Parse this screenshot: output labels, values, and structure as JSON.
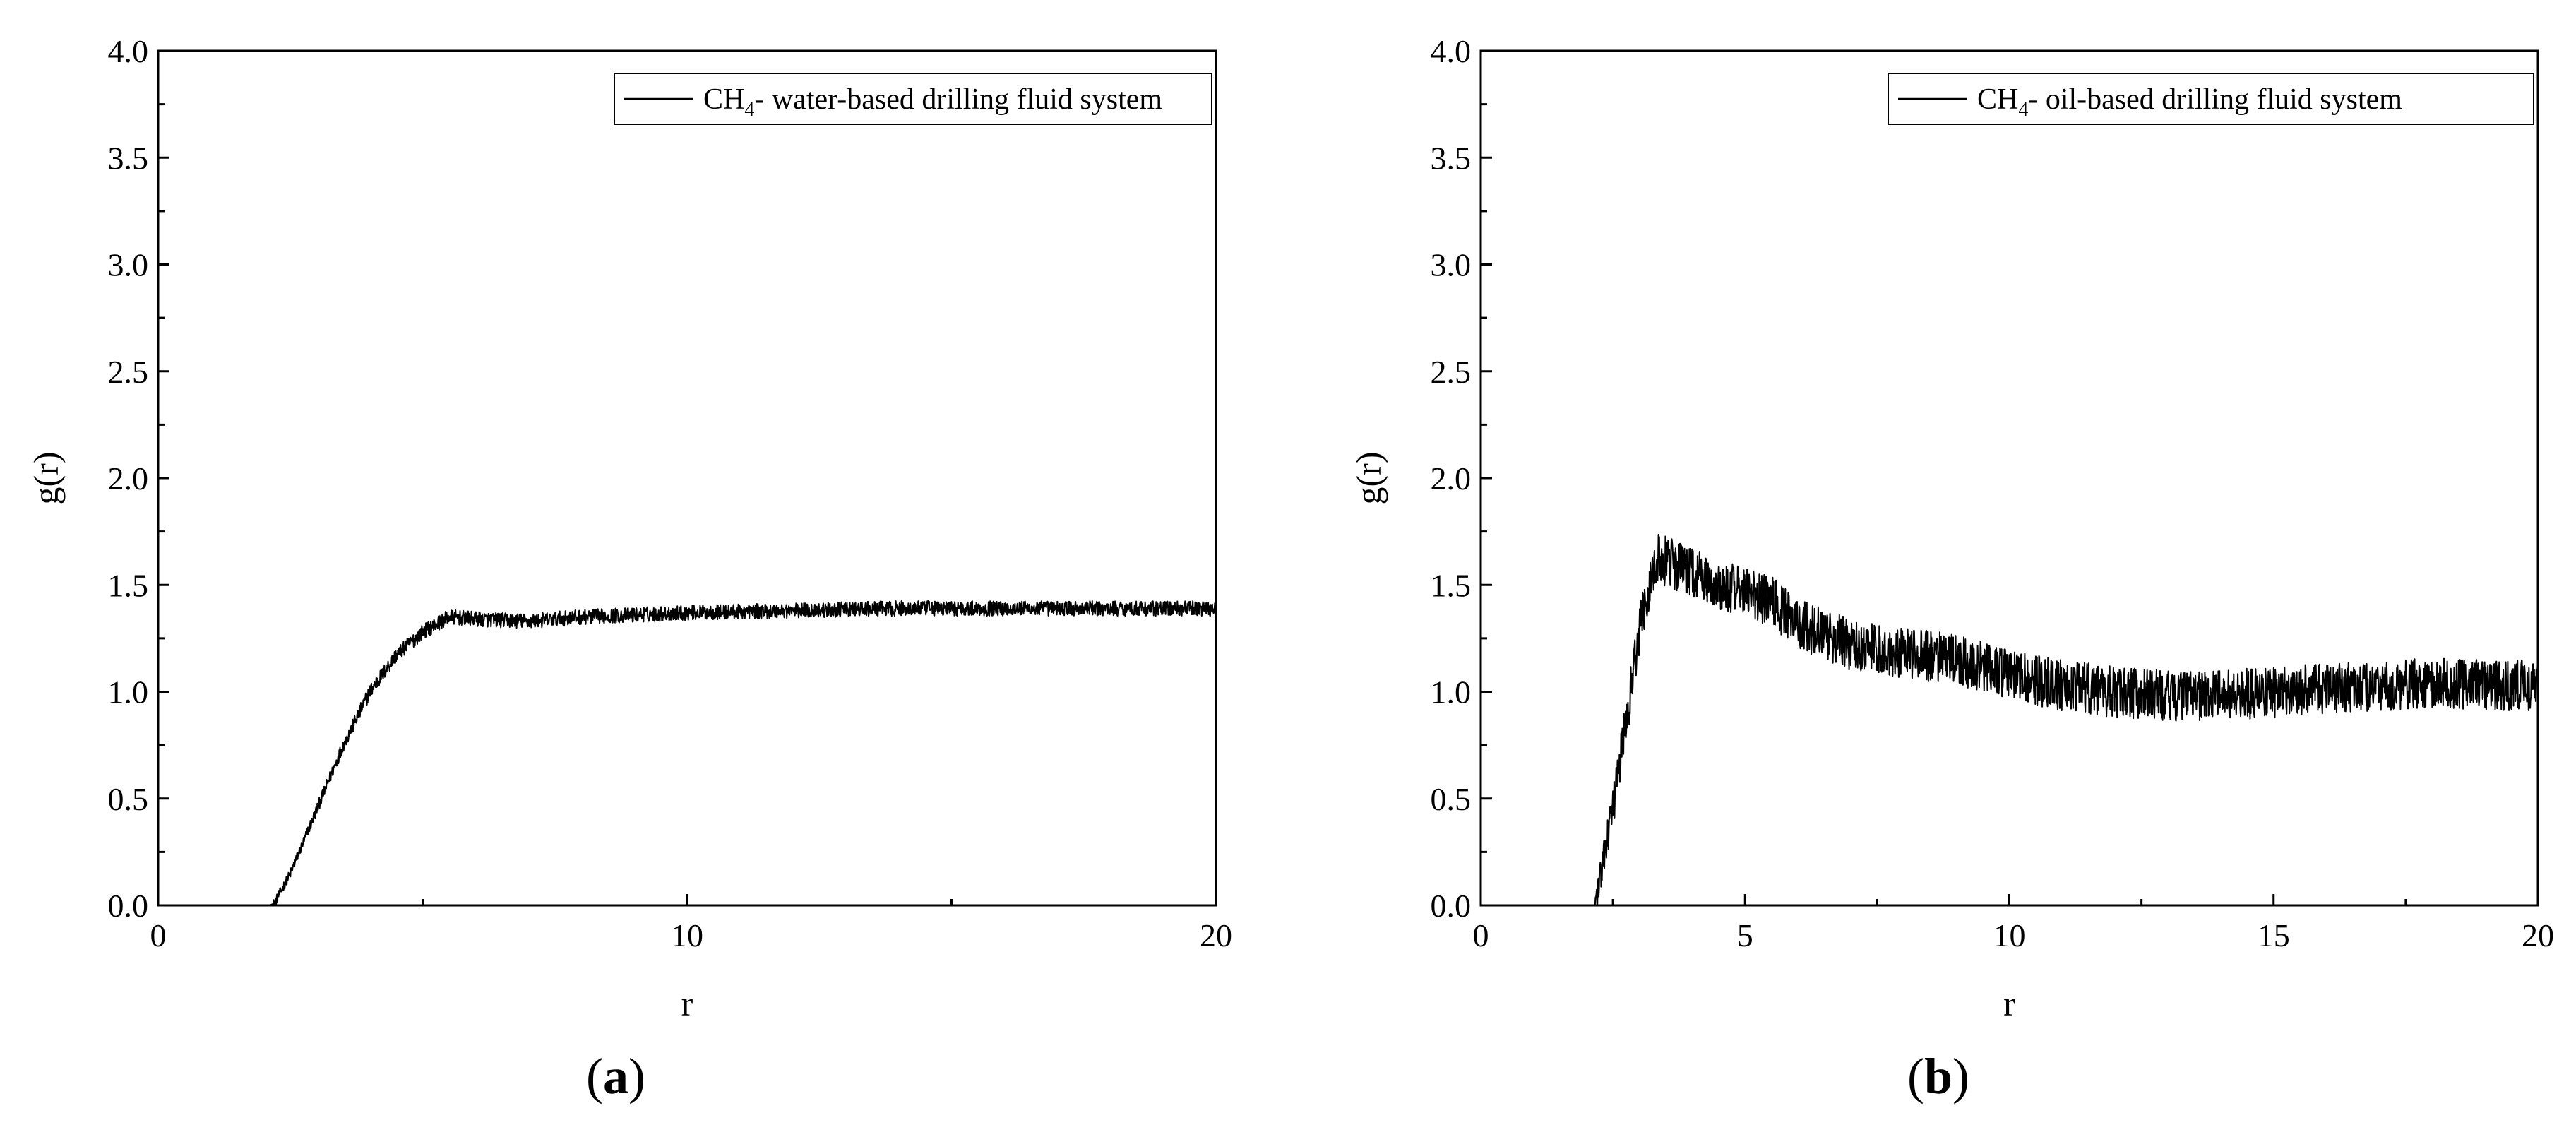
{
  "chart_data": [
    {
      "type": "line",
      "panel_label": "(a)",
      "panel_letter": "a",
      "xlabel": "r",
      "ylabel": "g(r)",
      "xlim": [
        0,
        20
      ],
      "ylim": [
        0.0,
        4.0
      ],
      "x_ticks": [
        "0",
        "10",
        "20"
      ],
      "x_tick_values": [
        0,
        10,
        20
      ],
      "x_minor_step": 5,
      "y_ticks": [
        "0.0",
        "0.5",
        "1.0",
        "1.5",
        "2.0",
        "2.5",
        "3.0",
        "3.5",
        "4.0"
      ],
      "y_tick_values": [
        0.0,
        0.5,
        1.0,
        1.5,
        2.0,
        2.5,
        3.0,
        3.5,
        4.0
      ],
      "legend": {
        "position": "top-right",
        "label_prefix": "CH",
        "label_sub": "4",
        "label_suffix": "- water-based drilling fluid system"
      },
      "grid": false,
      "series": [
        {
          "name": "CH4- water-based drilling fluid system",
          "color": "#000000",
          "noise": 0.035,
          "x": [
            0,
            2.1,
            2.2,
            2.5,
            3.0,
            3.5,
            4.0,
            4.5,
            5.0,
            5.5,
            6.0,
            7.0,
            8.0,
            9.0,
            10.0,
            12.0,
            14.0,
            16.0,
            18.0,
            20.0
          ],
          "y": [
            0,
            0,
            0.01,
            0.15,
            0.45,
            0.75,
            1.0,
            1.17,
            1.28,
            1.35,
            1.34,
            1.33,
            1.35,
            1.36,
            1.37,
            1.38,
            1.39,
            1.39,
            1.39,
            1.39
          ]
        }
      ]
    },
    {
      "type": "line",
      "panel_label": "(b)",
      "panel_letter": "b",
      "xlabel": "r",
      "ylabel": "g(r)",
      "xlim": [
        0,
        20
      ],
      "ylim": [
        0.0,
        4.0
      ],
      "x_ticks": [
        "0",
        "5",
        "10",
        "15",
        "20"
      ],
      "x_tick_values": [
        0,
        5,
        10,
        15,
        20
      ],
      "x_minor_step": 2.5,
      "y_ticks": [
        "0.0",
        "0.5",
        "1.0",
        "1.5",
        "2.0",
        "2.5",
        "3.0",
        "3.5",
        "4.0"
      ],
      "y_tick_values": [
        0.0,
        0.5,
        1.0,
        1.5,
        2.0,
        2.5,
        3.0,
        3.5,
        4.0
      ],
      "legend": {
        "position": "top-right",
        "label_prefix": "CH",
        "label_sub": "4",
        "label_suffix": "- oil-based drilling fluid system"
      },
      "grid": false,
      "series": [
        {
          "name": "CH4- oil-based drilling fluid system",
          "color": "#000000",
          "noise": 0.12,
          "x": [
            0,
            2.15,
            2.2,
            2.5,
            2.8,
            3.0,
            3.3,
            3.6,
            4.0,
            4.5,
            5.0,
            5.5,
            6.0,
            7.0,
            8.0,
            9.0,
            10.0,
            11.0,
            12.0,
            13.0,
            14.0,
            15.0,
            16.0,
            17.0,
            18.0,
            19.0,
            20.0
          ],
          "y": [
            0,
            0,
            0.05,
            0.45,
            0.95,
            1.3,
            1.62,
            1.6,
            1.55,
            1.5,
            1.47,
            1.42,
            1.32,
            1.22,
            1.18,
            1.15,
            1.08,
            1.03,
            1.0,
            0.98,
            0.98,
            1.0,
            1.01,
            1.03,
            1.04,
            1.03,
            1.03
          ]
        }
      ]
    }
  ]
}
